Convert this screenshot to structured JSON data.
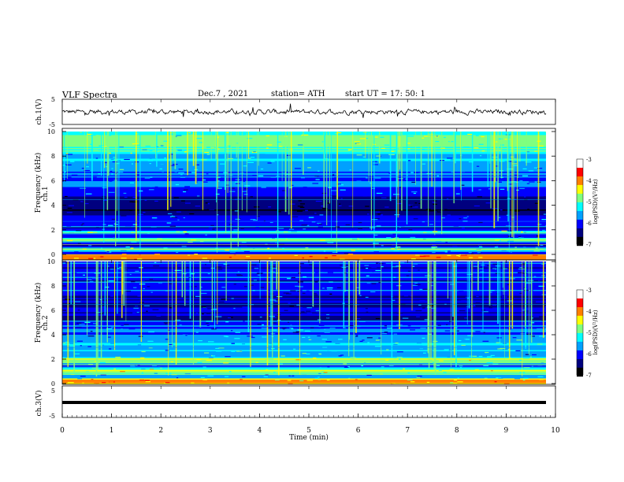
{
  "header": {
    "title": "VLF  Spectra",
    "date": "Dec.7  , 2021",
    "station": "station= ATH",
    "start": "start  UT  =    17: 50: 1"
  },
  "chart_data": [
    {
      "type": "line",
      "panel": "ch1-waveform",
      "ylabel": "ch.1(V)",
      "ylim": [
        -5,
        5
      ],
      "y_ticks": [
        "5",
        "-5"
      ],
      "xlim": [
        0,
        10
      ],
      "trace_color": "#000000",
      "note_values": "noisy waveform around 0 V, amplitude about ±1 V with occasional spikes to ±2 V"
    },
    {
      "type": "heatmap",
      "panel": "ch1-spectrogram",
      "ylabel": "Frequency  (kHz)",
      "channel_label": "ch.1",
      "ylim": [
        0,
        10
      ],
      "y_ticks": [
        "0",
        "2",
        "4",
        "6",
        "8",
        "10"
      ],
      "xlim": [
        0,
        10
      ],
      "colorbar": {
        "label": "log(PSD)(V²/Hz)",
        "range": [
          -7,
          -3
        ],
        "ticks": [
          "-3",
          "-4",
          "-5",
          "-6",
          "-7"
        ]
      }
    },
    {
      "type": "heatmap",
      "panel": "ch2-spectrogram",
      "ylabel": "Frequency  (kHz)",
      "channel_label": "ch.2",
      "ylim": [
        0,
        10
      ],
      "y_ticks": [
        "0",
        "2",
        "4",
        "6",
        "8",
        "10"
      ],
      "xlim": [
        0,
        10
      ],
      "colorbar": {
        "label": "log(PSD)(V²/Hz)",
        "range": [
          -7,
          -3
        ],
        "ticks": [
          "-3",
          "-4",
          "-5",
          "-6",
          "-7"
        ]
      }
    },
    {
      "type": "line",
      "panel": "ch3-waveform",
      "ylabel": "ch.3(V)",
      "ylim": [
        -5,
        5
      ],
      "y_ticks": [
        "5",
        "-5"
      ],
      "xlim": [
        0,
        10
      ],
      "trace_color": "#000000",
      "note_values": "near-constant trace at about -1.5 V"
    }
  ],
  "x_axis": {
    "label": "Time  (min)",
    "ticks": [
      "0",
      "1",
      "2",
      "3",
      "4",
      "5",
      "6",
      "7",
      "8",
      "9",
      "10"
    ]
  },
  "colors": {
    "colormap": [
      "#000000",
      "#00007f",
      "#0000ff",
      "#00a0ff",
      "#00ffff",
      "#7fff7f",
      "#ffff00",
      "#ff7f00",
      "#ff0000",
      "#ffffff"
    ]
  }
}
